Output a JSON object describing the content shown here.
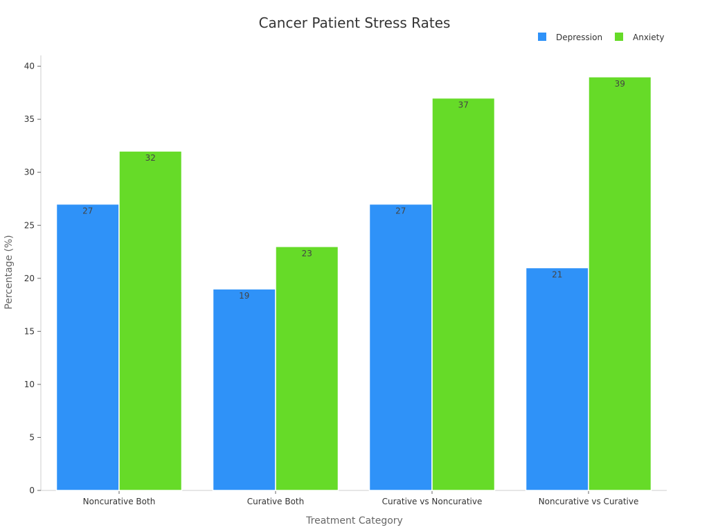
{
  "chart_data": {
    "type": "bar",
    "title": "Cancer Patient Stress Rates",
    "xlabel": "Treatment Category",
    "ylabel": "Percentage (%)",
    "categories": [
      "Noncurative Both",
      "Curative Both",
      "Curative vs Noncurative",
      "Noncurative vs Curative"
    ],
    "series": [
      {
        "name": "Depression",
        "color": "#2f92f8",
        "values": [
          27,
          19,
          27,
          21
        ]
      },
      {
        "name": "Anxiety",
        "color": "#66db28",
        "values": [
          32,
          23,
          37,
          39
        ]
      }
    ],
    "ylim": [
      0,
      40
    ],
    "yticks": [
      0,
      5,
      10,
      15,
      20,
      25,
      30,
      35,
      40
    ],
    "legend_position": "top-right",
    "grid": false
  }
}
